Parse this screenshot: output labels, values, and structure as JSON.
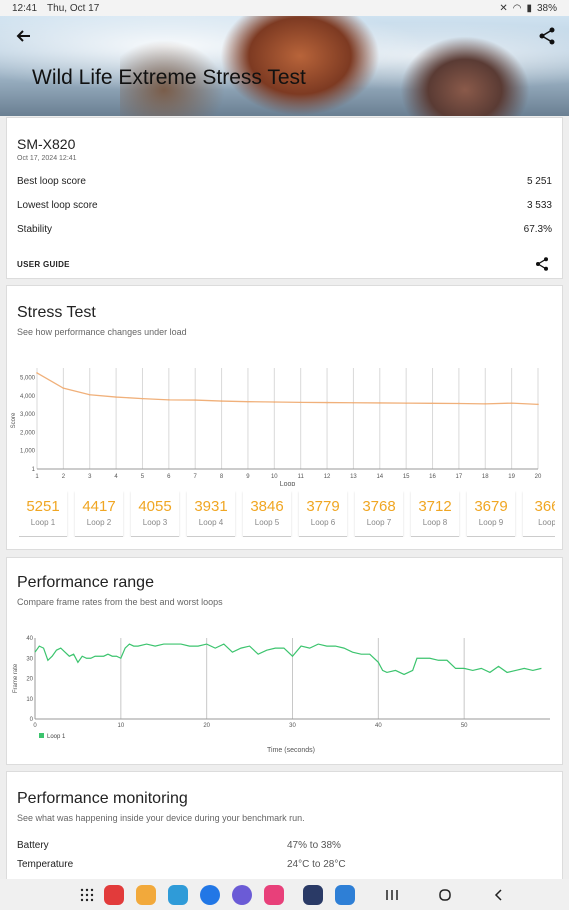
{
  "status_bar": {
    "time": "12:41",
    "date": "Thu, Oct 17",
    "battery": "38%"
  },
  "header": {
    "title": "Wild Life Extreme Stress Test"
  },
  "device": {
    "model": "SM-X820",
    "date": "Oct 17, 2024 12:41",
    "stats": [
      {
        "label": "Best loop score",
        "value": "5 251"
      },
      {
        "label": "Lowest loop score",
        "value": "3 533"
      },
      {
        "label": "Stability",
        "value": "67.3%"
      }
    ],
    "user_guide": "USER GUIDE"
  },
  "stress": {
    "title": "Stress Test",
    "subtitle": "See how performance changes under load",
    "loops": [
      {
        "score": "5251",
        "label": "Loop 1"
      },
      {
        "score": "4417",
        "label": "Loop 2"
      },
      {
        "score": "4055",
        "label": "Loop 3"
      },
      {
        "score": "3931",
        "label": "Loop 4"
      },
      {
        "score": "3846",
        "label": "Loop 5"
      },
      {
        "score": "3779",
        "label": "Loop 6"
      },
      {
        "score": "3768",
        "label": "Loop 7"
      },
      {
        "score": "3712",
        "label": "Loop 8"
      },
      {
        "score": "3679",
        "label": "Loop 9"
      },
      {
        "score": "366",
        "label": "Loop"
      }
    ]
  },
  "range": {
    "title": "Performance range",
    "subtitle": "Compare frame rates from the best and worst loops"
  },
  "monitoring": {
    "title": "Performance monitoring",
    "subtitle": "See what was happening inside your device during your benchmark run.",
    "rows": [
      {
        "label": "Battery",
        "value": "47% to 38%"
      },
      {
        "label": "Temperature",
        "value": "24°C to 28°C"
      }
    ]
  },
  "chart_data": [
    {
      "type": "line",
      "title": "",
      "xlabel": "Loop",
      "ylabel": "Score",
      "x": [
        1,
        2,
        3,
        4,
        5,
        6,
        7,
        8,
        9,
        10,
        11,
        12,
        13,
        14,
        15,
        16,
        17,
        18,
        19,
        20
      ],
      "y_ticks": [
        "1",
        "1,000",
        "2,000",
        "3,000",
        "4,000",
        "5,000"
      ],
      "series": [
        {
          "values": [
            5251,
            4417,
            4055,
            3931,
            3846,
            3779,
            3768,
            3712,
            3679,
            3660,
            3640,
            3630,
            3620,
            3610,
            3600,
            3590,
            3580,
            3560,
            3600,
            3533
          ]
        }
      ],
      "ylim": [
        1,
        5300
      ],
      "grid": "vertical",
      "color": "#f0b07a"
    },
    {
      "type": "line",
      "title": "",
      "xlabel": "Time (seconds)",
      "ylabel": "Frame rate",
      "xlim": [
        0,
        60
      ],
      "ylim": [
        0,
        40
      ],
      "x_ticks": [
        0,
        10,
        20,
        30,
        40,
        50
      ],
      "y_ticks": [
        0,
        10,
        20,
        30,
        40
      ],
      "legend": "bottom-left",
      "series": [
        {
          "name": "Loop 1",
          "color": "#3cc46e",
          "x": [
            0,
            0.5,
            1,
            1.5,
            2,
            2.5,
            3,
            3.5,
            4,
            4.5,
            5,
            5.5,
            6,
            6.5,
            7,
            7.5,
            8,
            8.5,
            9,
            9.5,
            10,
            10.5,
            11,
            11.5,
            12,
            13,
            14,
            15,
            16,
            17,
            18,
            19,
            20,
            21,
            22,
            23,
            24,
            25,
            26,
            27,
            28,
            29,
            30,
            31,
            32,
            33,
            34,
            35,
            36,
            37,
            38,
            39,
            40,
            40.5,
            41,
            42,
            43,
            44,
            44.5,
            45,
            46,
            47,
            48,
            49,
            50,
            51,
            52,
            53,
            54,
            55,
            56,
            57,
            58,
            59
          ],
          "y": [
            33,
            36,
            35,
            29,
            31,
            34,
            35,
            33,
            31,
            32,
            28,
            31,
            30,
            30,
            31,
            31,
            31,
            32,
            31,
            31,
            30,
            35,
            37,
            36,
            36,
            37,
            36,
            37,
            37,
            37,
            36,
            36,
            37,
            35,
            37,
            33,
            35,
            36,
            32,
            34,
            35,
            35,
            31,
            36,
            35,
            37,
            36,
            36,
            35,
            33,
            32,
            32,
            28,
            24,
            23,
            24,
            22,
            24,
            30,
            30,
            30,
            29,
            29,
            25,
            25,
            24,
            25,
            23,
            26,
            23,
            24,
            25,
            24,
            25
          ]
        }
      ]
    }
  ]
}
